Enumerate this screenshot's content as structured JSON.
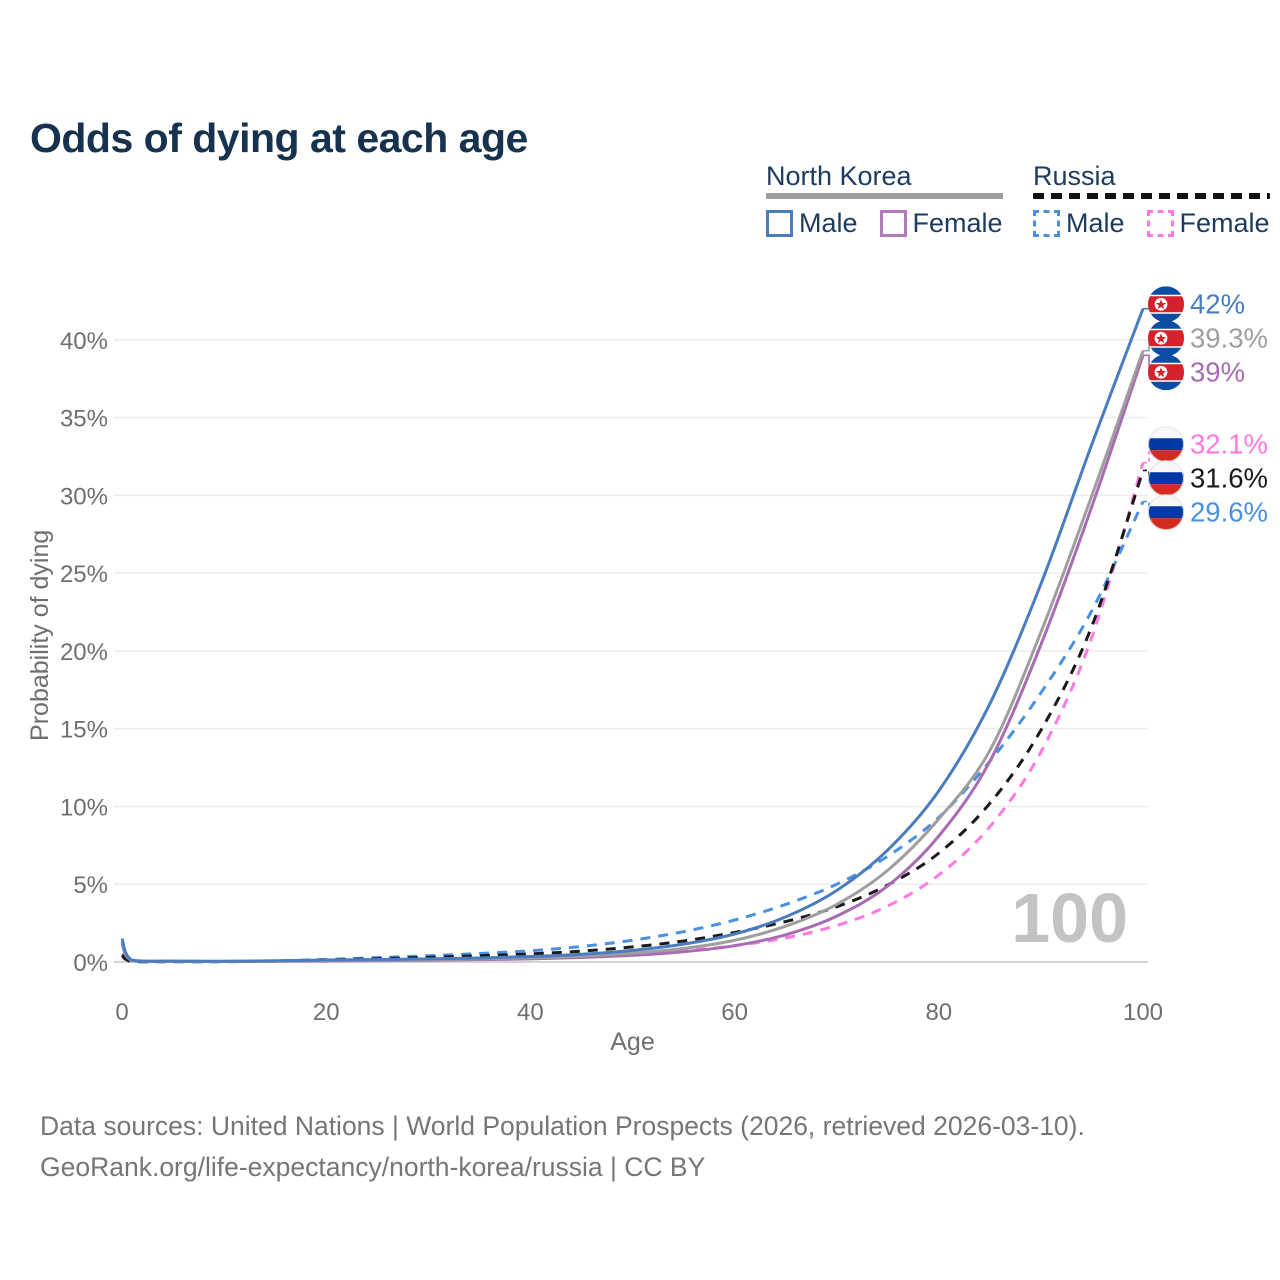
{
  "title": "Odds of dying at each age",
  "legend": {
    "groups": [
      {
        "title": "North Korea",
        "line_style": "solid",
        "underline_color": "#9e9e9e",
        "items": [
          {
            "label": "Male",
            "color": "#4a7cc0",
            "dashed": false
          },
          {
            "label": "Female",
            "color": "#b478bc",
            "dashed": false
          }
        ]
      },
      {
        "title": "Russia",
        "line_style": "dashed",
        "underline_color": "#111111",
        "items": [
          {
            "label": "Male",
            "color": "#4a90e2",
            "dashed": true
          },
          {
            "label": "Female",
            "color": "#ff7ae0",
            "dashed": true
          }
        ]
      }
    ]
  },
  "chart_data": {
    "type": "line",
    "title": "Odds of dying at each age",
    "xlabel": "Age",
    "ylabel": "Probability of dying",
    "xlim": [
      0,
      100
    ],
    "ylim": [
      0,
      43
    ],
    "x_ticks": [
      0,
      20,
      40,
      60,
      80,
      100
    ],
    "y_tick_values": [
      0,
      5,
      10,
      15,
      20,
      25,
      30,
      35,
      40
    ],
    "y_ticks": [
      "0%",
      "5%",
      "10%",
      "15%",
      "20%",
      "25%",
      "30%",
      "35%",
      "40%"
    ],
    "grid": true,
    "legend_position": "top-right",
    "watermark": "100",
    "ages": [
      0,
      1,
      5,
      10,
      15,
      20,
      25,
      30,
      35,
      40,
      45,
      50,
      55,
      60,
      65,
      70,
      75,
      80,
      85,
      90,
      95,
      100
    ],
    "series": [
      {
        "name": "Russia – Female",
        "country": "russia",
        "color": "#ff7ae0",
        "dashed": true,
        "end_label": "32.1%",
        "values": [
          0.38,
          0.04,
          0.02,
          0.02,
          0.04,
          0.06,
          0.09,
          0.13,
          0.18,
          0.25,
          0.35,
          0.5,
          0.72,
          1.05,
          1.55,
          2.35,
          3.6,
          5.6,
          8.7,
          13.5,
          20.9,
          32.1
        ]
      },
      {
        "name": "Russia – Male",
        "country": "russia",
        "color": "#4a90e2",
        "dashed": true,
        "end_label": "29.6%",
        "values": [
          0.5,
          0.05,
          0.03,
          0.03,
          0.07,
          0.17,
          0.28,
          0.4,
          0.55,
          0.72,
          1.0,
          1.4,
          1.95,
          2.7,
          3.7,
          5.0,
          6.8,
          9.3,
          12.9,
          17.3,
          22.6,
          29.6
        ]
      },
      {
        "name": "Russia – Total",
        "country": "russia",
        "color": "#1a1a1a",
        "dashed": true,
        "end_label": "31.6%",
        "values": [
          0.42,
          0.04,
          0.025,
          0.025,
          0.06,
          0.13,
          0.21,
          0.3,
          0.4,
          0.52,
          0.7,
          0.97,
          1.35,
          1.9,
          2.6,
          3.55,
          4.95,
          7.0,
          10.2,
          14.9,
          21.6,
          31.6
        ]
      },
      {
        "name": "North Korea – Female",
        "country": "north-korea",
        "color": "#a86cb2",
        "dashed": false,
        "end_label": "39%",
        "values": [
          1.15,
          0.09,
          0.04,
          0.035,
          0.05,
          0.07,
          0.09,
          0.11,
          0.15,
          0.2,
          0.29,
          0.43,
          0.66,
          1.05,
          1.75,
          2.95,
          4.9,
          8.1,
          12.9,
          20.4,
          29.3,
          39.0
        ]
      },
      {
        "name": "North Korea – Total",
        "country": "north-korea",
        "color": "#9e9e9e",
        "dashed": false,
        "end_label": "39.3%",
        "values": [
          1.3,
          0.1,
          0.05,
          0.04,
          0.06,
          0.1,
          0.12,
          0.15,
          0.2,
          0.27,
          0.38,
          0.57,
          0.87,
          1.4,
          2.3,
          3.7,
          5.9,
          9.2,
          13.6,
          21.2,
          30.0,
          39.3
        ]
      },
      {
        "name": "North Korea – Male",
        "country": "north-korea",
        "color": "#4a7cc0",
        "dashed": false,
        "end_label": "42%",
        "values": [
          1.5,
          0.12,
          0.06,
          0.05,
          0.08,
          0.13,
          0.16,
          0.2,
          0.26,
          0.35,
          0.5,
          0.75,
          1.15,
          1.8,
          2.9,
          4.6,
          7.2,
          11.0,
          16.6,
          24.3,
          33.3,
          42.0
        ]
      }
    ],
    "flag_colors": {
      "north-korea": {
        "blue": "#0b4da2",
        "red": "#d6202b",
        "white": "#ffffff"
      },
      "russia": {
        "white": "#f7f7f7",
        "blue": "#0039a6",
        "red": "#d52b1e"
      }
    }
  },
  "footer": {
    "line1": "Data sources: United Nations | World Population Prospects (2026, retrieved 2026-03-10).",
    "line2": "GeoRank.org/life-expectancy/north-korea/russia | CC BY"
  }
}
